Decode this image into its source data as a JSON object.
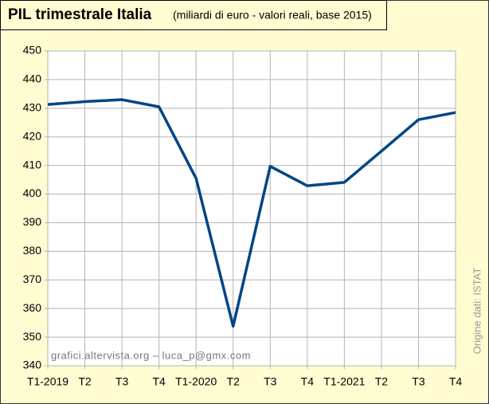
{
  "chart_data": {
    "type": "line",
    "title": "PIL trimestrale Italia",
    "subtitle": "(miliardi di euro - valori reali, base 2015)",
    "watermark": "grafici.altervista.org – luca_p@gmx.com",
    "source": "Origine dati: ISTAT",
    "categories": [
      "T1-2019",
      "T2",
      "T3",
      "T4",
      "T1-2020",
      "T2",
      "T3",
      "T4",
      "T1-2021",
      "T2",
      "T3",
      "T4"
    ],
    "series": [
      {
        "name": "PIL",
        "color": "#004586",
        "values": [
          431.3,
          432.3,
          433.0,
          430.5,
          405.5,
          353.8,
          409.7,
          402.9,
          404.1,
          415.0,
          426.0,
          428.5
        ]
      }
    ],
    "ylim": [
      340,
      450
    ],
    "yticks": [
      340,
      350,
      360,
      370,
      380,
      390,
      400,
      410,
      420,
      430,
      440,
      450
    ],
    "grid": true
  }
}
